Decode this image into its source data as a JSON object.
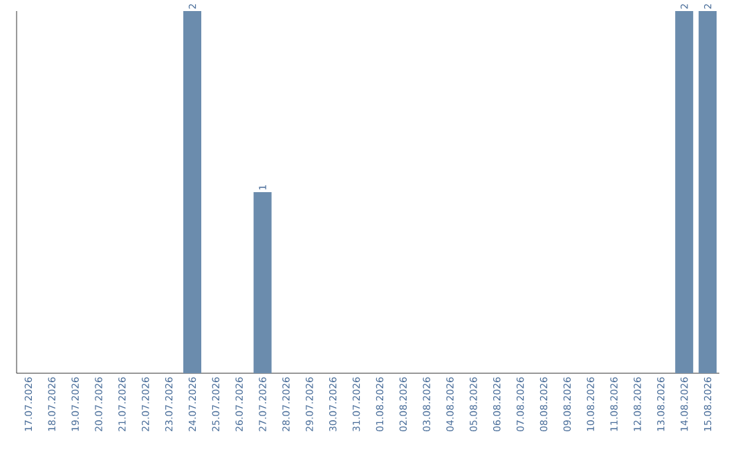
{
  "chart_data": {
    "type": "bar",
    "categories": [
      "17.07.2026",
      "18.07.2026",
      "19.07.2026",
      "20.07.2026",
      "21.07.2026",
      "22.07.2026",
      "23.07.2026",
      "24.07.2026",
      "25.07.2026",
      "26.07.2026",
      "27.07.2026",
      "28.07.2026",
      "29.07.2026",
      "30.07.2026",
      "31.07.2026",
      "01.08.2026",
      "02.08.2026",
      "03.08.2026",
      "04.08.2026",
      "05.08.2026",
      "06.08.2026",
      "07.08.2026",
      "08.08.2026",
      "09.08.2026",
      "10.08.2026",
      "11.08.2026",
      "12.08.2026",
      "13.08.2026",
      "14.08.2026",
      "15.08.2026"
    ],
    "values": [
      0,
      0,
      0,
      0,
      0,
      0,
      0,
      2,
      0,
      0,
      1,
      0,
      0,
      0,
      0,
      0,
      0,
      0,
      0,
      0,
      0,
      0,
      0,
      0,
      0,
      0,
      0,
      0,
      2,
      2
    ],
    "value_labels": [
      null,
      null,
      null,
      null,
      null,
      null,
      null,
      "2",
      null,
      null,
      "1",
      null,
      null,
      null,
      null,
      null,
      null,
      null,
      null,
      null,
      null,
      null,
      null,
      null,
      null,
      null,
      null,
      null,
      "2",
      "2"
    ],
    "color": "#6b8cad"
  }
}
